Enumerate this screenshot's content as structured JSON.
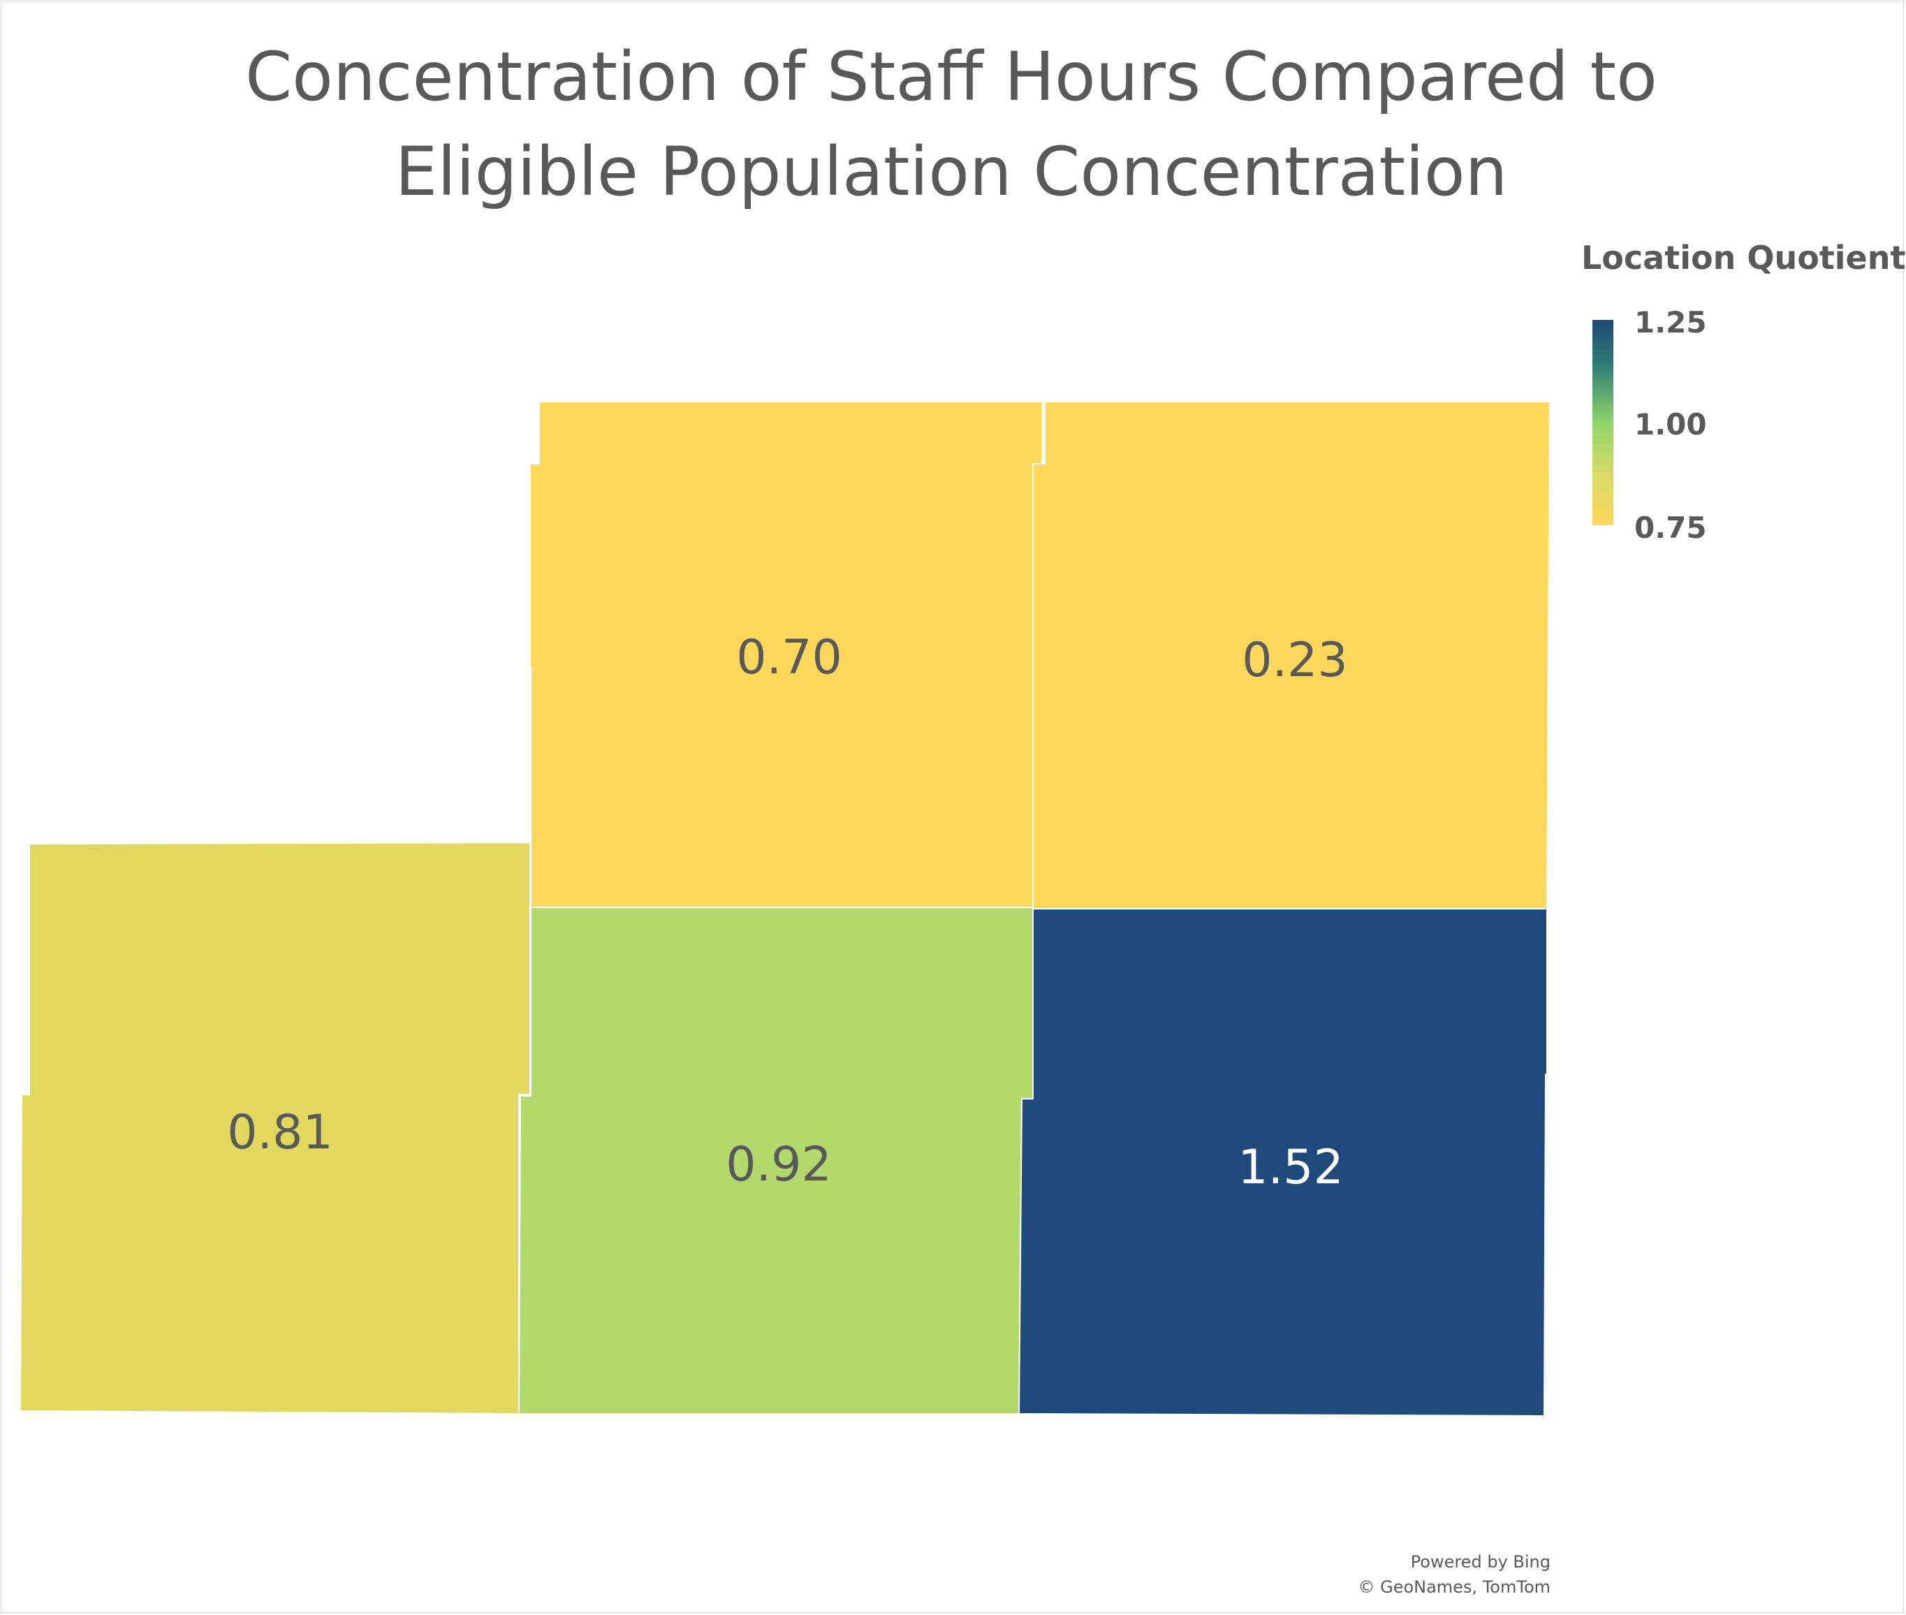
{
  "title": "Concentration of Staff Hours Compared to Eligible Population Concentration",
  "legend": {
    "title": "Location Quotient",
    "ticks": [
      "1.25",
      "1.00",
      "0.75"
    ]
  },
  "regions": [
    {
      "id": "top-left-middle",
      "value": "0.70",
      "color": "#ffd75a",
      "label_color": "#595959"
    },
    {
      "id": "top-right",
      "value": "0.23",
      "color": "#ffd75a",
      "label_color": "#595959"
    },
    {
      "id": "bottom-left",
      "value": "0.81",
      "color": "#e3d85f",
      "label_color": "#595959"
    },
    {
      "id": "bottom-middle",
      "value": "0.92",
      "color": "#b3d96c",
      "label_color": "#595959"
    },
    {
      "id": "bottom-right",
      "value": "1.52",
      "color": "#1f487b",
      "label_color": "#ffffff"
    }
  ],
  "attribution": {
    "line1": "Powered by Bing",
    "line2": "© GeoNames, TomTom"
  }
}
